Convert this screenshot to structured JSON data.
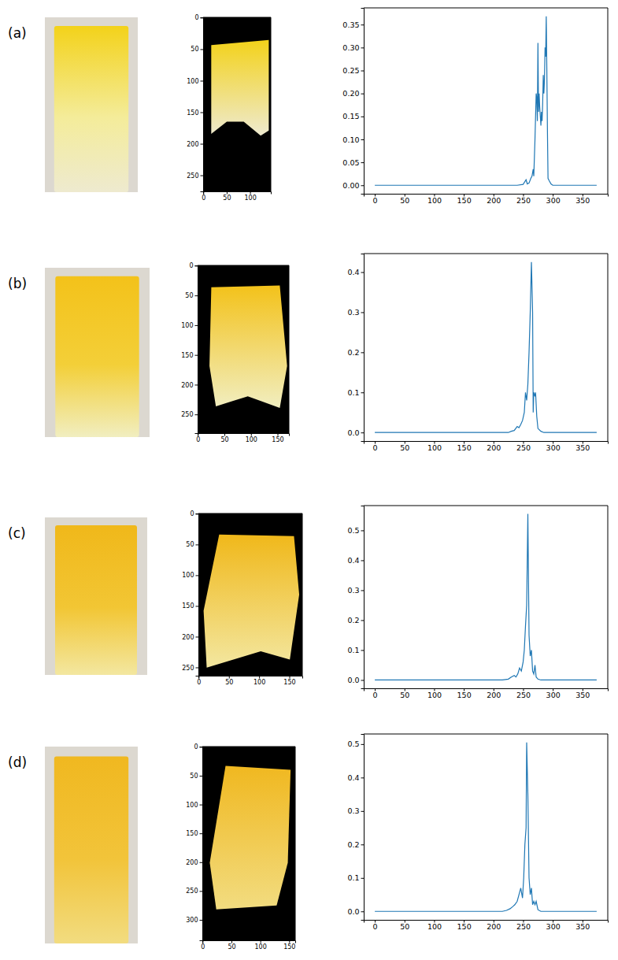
{
  "chart_data": [
    {
      "type": "photo",
      "title": "(a)"
    },
    {
      "type": "image",
      "xlim": [
        -0.5,
        144.5
      ],
      "ylim": [
        275.5,
        -0.5
      ],
      "xticks": [
        0,
        50,
        100
      ],
      "yticks": [
        0,
        50,
        100,
        150,
        200,
        250
      ]
    },
    {
      "type": "line",
      "color": "#1f77b4",
      "x": [
        0,
        240,
        250,
        255,
        257,
        260,
        263,
        265,
        267,
        268,
        270,
        272,
        273,
        274,
        275,
        276,
        277,
        278,
        279,
        280,
        281,
        282,
        283,
        284,
        285,
        286,
        287,
        288,
        289,
        290,
        291,
        292,
        294,
        297,
        300,
        374
      ],
      "values": [
        0,
        0,
        0.002,
        0.012,
        0.003,
        0.005,
        0.015,
        0.02,
        0.035,
        0.02,
        0.1,
        0.2,
        0.19,
        0.14,
        0.31,
        0.16,
        0.2,
        0.17,
        0.15,
        0.13,
        0.16,
        0.14,
        0.18,
        0.24,
        0.2,
        0.23,
        0.3,
        0.28,
        0.368,
        0.25,
        0.12,
        0.015,
        0.01,
        0.003,
        0,
        0
      ],
      "xlim": [
        -18.7,
        392.7
      ],
      "ylim": [
        -0.0184,
        0.3864
      ],
      "xticks": [
        0,
        50,
        100,
        150,
        200,
        250,
        300,
        350
      ],
      "yticks": [
        {
          "value": 0,
          "label": "0.00"
        },
        0.05,
        {
          "value": 0.1,
          "label": "0.10"
        },
        0.15,
        {
          "value": 0.2,
          "label": "0.20"
        },
        0.25,
        {
          "value": 0.3,
          "label": "0.30"
        },
        0.35
      ]
    },
    {
      "type": "photo",
      "title": "(b)"
    },
    {
      "type": "image",
      "xlim": [
        -0.5,
        171.5
      ],
      "ylim": [
        281.5,
        -0.5
      ],
      "xticks": [
        0,
        50,
        100,
        150
      ],
      "yticks": [
        0,
        50,
        100,
        150,
        200,
        250
      ]
    },
    {
      "type": "line",
      "color": "#1f77b4",
      "x": [
        0,
        225,
        230,
        235,
        240,
        243,
        246,
        249,
        252,
        254,
        256,
        258,
        260,
        262,
        264,
        266,
        267,
        268,
        270,
        271,
        273,
        275,
        280,
        285,
        374
      ],
      "values": [
        0,
        0,
        0.003,
        0.005,
        0.015,
        0.012,
        0.02,
        0.03,
        0.05,
        0.1,
        0.08,
        0.12,
        0.2,
        0.3,
        0.425,
        0.3,
        0.05,
        0.1,
        0.09,
        0.1,
        0.04,
        0.01,
        0.003,
        0,
        0
      ],
      "xlim": [
        -18.7,
        392.7
      ],
      "ylim": [
        -0.02125,
        0.44625
      ],
      "xticks": [
        0,
        50,
        100,
        150,
        200,
        250,
        300,
        350
      ],
      "yticks": [
        {
          "value": 0,
          "label": "0.0"
        },
        0.1,
        0.2,
        0.3,
        0.4
      ]
    },
    {
      "type": "photo",
      "title": "(c)"
    },
    {
      "type": "image",
      "xlim": [
        -0.5,
        171.5
      ],
      "ylim": [
        263.5,
        -0.5
      ],
      "xticks": [
        0,
        50,
        100,
        150
      ],
      "yticks": [
        0,
        50,
        100,
        150,
        200,
        250
      ]
    },
    {
      "type": "line",
      "color": "#1f77b4",
      "x": [
        0,
        215,
        225,
        230,
        235,
        238,
        241,
        244,
        247,
        250,
        252,
        254,
        256,
        258,
        260,
        262,
        264,
        266,
        268,
        270,
        272,
        275,
        280,
        374
      ],
      "values": [
        0,
        0,
        0.003,
        0.01,
        0.015,
        0.01,
        0.02,
        0.04,
        0.03,
        0.06,
        0.1,
        0.18,
        0.25,
        0.555,
        0.15,
        0.08,
        0.1,
        0.03,
        0.02,
        0.05,
        0.01,
        0.003,
        0,
        0
      ],
      "xlim": [
        -18.7,
        392.7
      ],
      "ylim": [
        -0.02775,
        0.58275
      ],
      "xticks": [
        0,
        50,
        100,
        150,
        200,
        250,
        300,
        350
      ],
      "yticks": [
        {
          "value": 0,
          "label": "0.0"
        },
        0.1,
        0.2,
        0.3,
        0.4,
        0.5
      ]
    },
    {
      "type": "photo",
      "title": "(d)"
    },
    {
      "type": "image",
      "xlim": [
        -0.5,
        160.5
      ],
      "ylim": [
        335.5,
        -0.5
      ],
      "xticks": [
        0,
        50,
        100,
        150
      ],
      "yticks": [
        0,
        50,
        100,
        150,
        200,
        250,
        300
      ]
    },
    {
      "type": "line",
      "color": "#1f77b4",
      "x": [
        0,
        215,
        222,
        228,
        233,
        236,
        240,
        243,
        246,
        249,
        251,
        253,
        255,
        256,
        258,
        260,
        262,
        264,
        266,
        268,
        270,
        272,
        275,
        280,
        374
      ],
      "values": [
        0,
        0,
        0.003,
        0.008,
        0.015,
        0.02,
        0.03,
        0.05,
        0.07,
        0.04,
        0.1,
        0.2,
        0.25,
        0.505,
        0.35,
        0.1,
        0.05,
        0.07,
        0.02,
        0.03,
        0.02,
        0.03,
        0.005,
        0,
        0
      ],
      "xlim": [
        -18.7,
        392.7
      ],
      "ylim": [
        -0.02525,
        0.53025
      ],
      "xticks": [
        0,
        50,
        100,
        150,
        200,
        250,
        300,
        350
      ],
      "yticks": [
        {
          "value": 0,
          "label": "0.0"
        },
        0.1,
        0.2,
        0.3,
        0.4,
        0.5
      ]
    }
  ]
}
